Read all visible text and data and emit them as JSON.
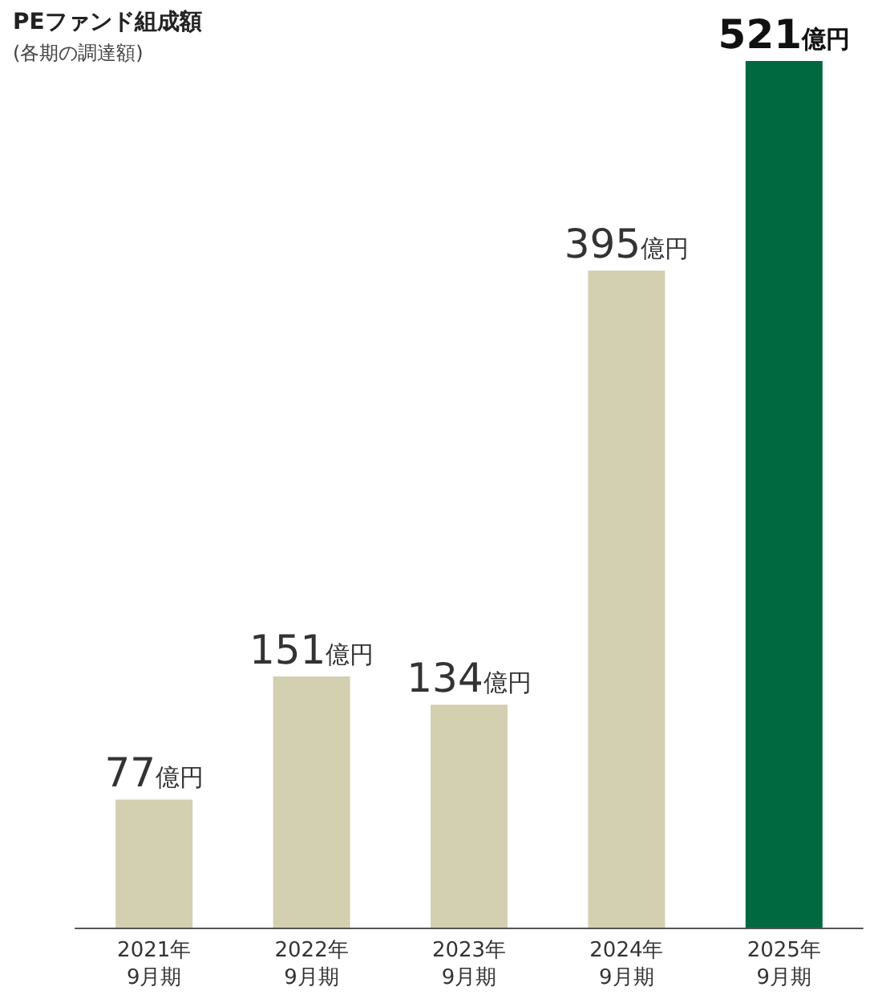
{
  "chart_data": {
    "type": "bar",
    "title": "PEファンド組成額",
    "subtitle": "(各期の調達額)",
    "categories": [
      "2021年\n9月期",
      "2022年\n9月期",
      "2023年\n9月期",
      "2024年\n9月期",
      "2025年\n9月期"
    ],
    "values": [
      77,
      151,
      134,
      395,
      521
    ],
    "colors": [
      "#d3cfb1",
      "#d3cfb1",
      "#d3cfb1",
      "#d3cfb1",
      "#00693f"
    ],
    "value_labels": [
      "77億円",
      "151億円",
      "134億円",
      "395億円",
      "521億円"
    ]
  }
}
